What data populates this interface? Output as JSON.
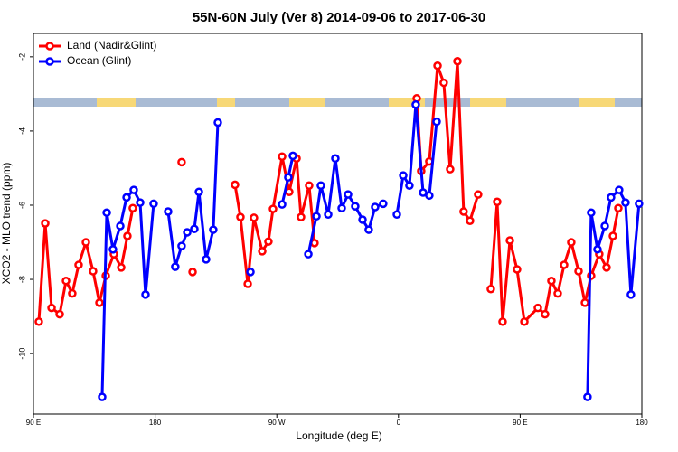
{
  "chart_data": {
    "type": "line",
    "title": "55N-60N July (Ver 8)   2014-09-06 to 2017-06-30",
    "x_label": "Longitude (deg E)",
    "y_label": "XCO2 - MLO trend (ppm)",
    "xlim": [
      90,
      540
    ],
    "xticks": [
      {
        "value": 90,
        "label": "90 E"
      },
      {
        "value": 180,
        "label": "180"
      },
      {
        "value": 270,
        "label": "90 W"
      },
      {
        "value": 360,
        "label": "0"
      },
      {
        "value": 450,
        "label": "90 E"
      },
      {
        "value": 540,
        "label": "180"
      }
    ],
    "ylim": [
      -11.63,
      -1.37
    ],
    "yticks": [
      -10,
      -8,
      -6,
      -4,
      -2
    ],
    "legend": "top-left",
    "series": [
      {
        "name": "Land (Nadir&Glint)",
        "color": "#ff0000",
        "x": [
          94.0,
          98.7,
          103.4,
          109.4,
          114.1,
          118.7,
          123.4,
          128.8,
          134.1,
          138.8,
          143.5,
          149.5,
          154.9,
          159.5,
          163.5,
          null,
          199.6,
          null,
          207.7,
          null,
          239.1,
          243.1,
          248.5,
          253.1,
          259.2,
          263.8,
          267.2,
          273.9,
          279.2,
          284.6,
          287.9,
          293.9,
          297.9,
          null,
          373.5,
          376.8,
          382.8,
          388.9,
          393.5,
          398.2,
          403.6,
          408.2,
          412.9,
          418.9,
          null,
          428.3,
          433.0,
          437.0,
          442.4,
          447.7,
          453.1,
          463.1,
          468.4,
          473.1,
          477.8,
          482.5,
          487.8,
          493.2,
          497.9,
          502.5,
          508.5,
          513.9,
          518.6,
          522.6
        ],
        "values": [
          -9.14,
          -6.49,
          -8.77,
          -8.94,
          -8.04,
          -8.38,
          -7.61,
          -7.0,
          -7.78,
          -8.63,
          -7.9,
          -7.32,
          -7.68,
          -6.83,
          -6.08,
          null,
          -4.84,
          null,
          -7.8,
          null,
          -5.45,
          -6.32,
          -8.12,
          -6.34,
          -7.24,
          -6.98,
          -6.1,
          -4.69,
          -5.64,
          -4.74,
          -6.32,
          -5.47,
          -7.02,
          null,
          -3.12,
          -5.08,
          -4.82,
          -2.24,
          -2.7,
          -5.03,
          -2.12,
          -6.17,
          -6.42,
          -5.71,
          null,
          -8.26,
          -5.91,
          -9.14,
          -6.95,
          -7.73,
          -9.14,
          -8.77,
          -8.94,
          -8.04,
          -8.38,
          -7.61,
          -7.0,
          -7.78,
          -8.63,
          -7.9,
          -7.32,
          -7.68,
          -6.83,
          -6.08
        ]
      },
      {
        "name": "Ocean (Glint)",
        "color": "#0000ff",
        "x": [
          140.8,
          144.2,
          148.8,
          154.2,
          158.9,
          164.2,
          168.9,
          172.9,
          178.9,
          null,
          189.6,
          194.9,
          199.6,
          203.7,
          209.0,
          212.4,
          217.7,
          223.0,
          226.4,
          null,
          250.5,
          null,
          273.9,
          278.5,
          281.9,
          null,
          293.3,
          299.3,
          302.6,
          308.0,
          313.3,
          318.0,
          322.7,
          328.0,
          333.4,
          338.0,
          342.7,
          348.7,
          null,
          358.8,
          363.5,
          368.1,
          372.8,
          378.2,
          382.8,
          388.2,
          null,
          499.8,
          502.5,
          507.2,
          512.6,
          517.2,
          523.2,
          527.9,
          531.9,
          537.9
        ],
        "values": [
          -11.17,
          -6.2,
          -7.19,
          -6.56,
          -5.79,
          -5.59,
          -5.93,
          -8.41,
          -5.96,
          null,
          -6.17,
          -7.66,
          -7.1,
          -6.73,
          -6.64,
          -5.64,
          -7.46,
          -6.66,
          -3.77,
          null,
          -7.8,
          null,
          -5.98,
          -5.25,
          -4.67,
          null,
          -7.32,
          -6.3,
          -5.47,
          -6.25,
          -4.74,
          -6.08,
          -5.71,
          -6.03,
          -6.39,
          -6.66,
          -6.05,
          -5.96,
          null,
          -6.25,
          -5.2,
          -5.47,
          -3.29,
          -5.66,
          -5.74,
          -3.75,
          null,
          -11.17,
          -6.2,
          -7.19,
          -6.56,
          -5.79,
          -5.59,
          -5.93,
          -8.41,
          -5.96
        ]
      }
    ]
  }
}
